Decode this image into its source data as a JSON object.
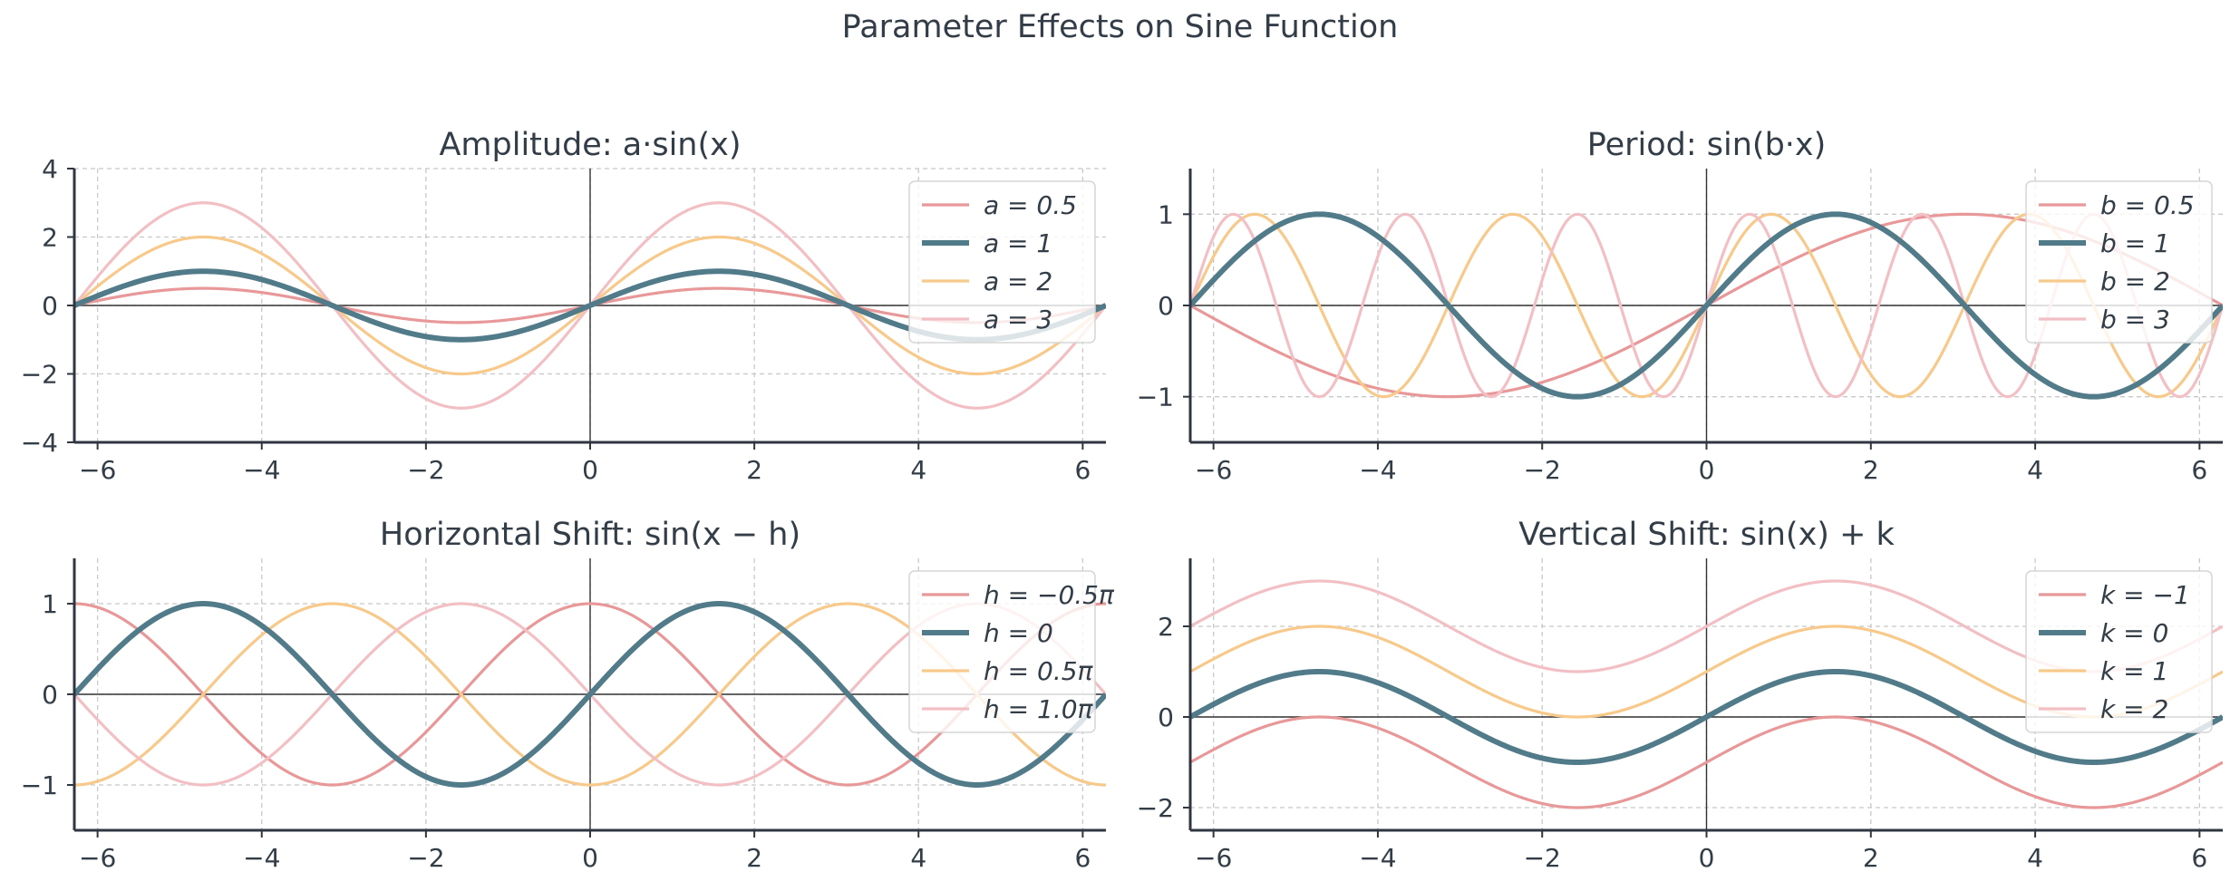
{
  "suptitle": "Parameter Effects on Sine Function",
  "colors": {
    "primary": "#527b8a",
    "c0": "#e89898",
    "c2": "#f7c98a",
    "c3": "#f2c0c4",
    "axis": "#2f3640",
    "text": "#333d47",
    "grid": "#c8c8c8"
  },
  "chart_data": [
    {
      "type": "line",
      "title": "Amplitude: a·sin(x)",
      "function": "a*sin(x)",
      "xlim": [
        -6.283,
        6.283
      ],
      "ylim": [
        -4,
        4
      ],
      "xticks": [
        -6,
        -4,
        -2,
        0,
        2,
        4,
        6
      ],
      "yticks": [
        -4,
        -2,
        0,
        2,
        4
      ],
      "xtick_labels": [
        "−6",
        "−4",
        "−2",
        "0",
        "2",
        "4",
        "6"
      ],
      "ytick_labels": [
        "−4",
        "−2",
        "0",
        "2",
        "4"
      ],
      "grid": true,
      "legend_loc": "top-right",
      "series": [
        {
          "name": "a = 0.5",
          "param": 0.5
        },
        {
          "name": "a = 1",
          "param": 1,
          "emphasis": true
        },
        {
          "name": "a = 2",
          "param": 2
        },
        {
          "name": "a = 3",
          "param": 3
        }
      ]
    },
    {
      "type": "line",
      "title": "Period: sin(b·x)",
      "function": "sin(b*x)",
      "xlim": [
        -6.283,
        6.283
      ],
      "ylim": [
        -1.5,
        1.5
      ],
      "xticks": [
        -6,
        -4,
        -2,
        0,
        2,
        4,
        6
      ],
      "yticks": [
        -1,
        0,
        1
      ],
      "xtick_labels": [
        "−6",
        "−4",
        "−2",
        "0",
        "2",
        "4",
        "6"
      ],
      "ytick_labels": [
        "−1",
        "0",
        "1"
      ],
      "grid": true,
      "legend_loc": "top-right",
      "series": [
        {
          "name": "b = 0.5",
          "param": 0.5
        },
        {
          "name": "b = 1",
          "param": 1,
          "emphasis": true
        },
        {
          "name": "b = 2",
          "param": 2
        },
        {
          "name": "b = 3",
          "param": 3
        }
      ]
    },
    {
      "type": "line",
      "title": "Horizontal Shift: sin(x − h)",
      "function": "sin(x-h)",
      "xlim": [
        -6.283,
        6.283
      ],
      "ylim": [
        -1.5,
        1.5
      ],
      "xticks": [
        -6,
        -4,
        -2,
        0,
        2,
        4,
        6
      ],
      "yticks": [
        -1,
        0,
        1
      ],
      "xtick_labels": [
        "−6",
        "−4",
        "−2",
        "0",
        "2",
        "4",
        "6"
      ],
      "ytick_labels": [
        "−1",
        "0",
        "1"
      ],
      "grid": true,
      "legend_loc": "top-right",
      "series": [
        {
          "name": "h = −0.5π",
          "param": -1.5708
        },
        {
          "name": "h = 0",
          "param": 0,
          "emphasis": true
        },
        {
          "name": "h = 0.5π",
          "param": 1.5708
        },
        {
          "name": "h = 1.0π",
          "param": 3.1416
        }
      ]
    },
    {
      "type": "line",
      "title": "Vertical Shift: sin(x) + k",
      "function": "sin(x)+k",
      "xlim": [
        -6.283,
        6.283
      ],
      "ylim": [
        -2.5,
        3.5
      ],
      "xticks": [
        -6,
        -4,
        -2,
        0,
        2,
        4,
        6
      ],
      "yticks": [
        -2,
        0,
        2
      ],
      "xtick_labels": [
        "−6",
        "−4",
        "−2",
        "0",
        "2",
        "4",
        "6"
      ],
      "ytick_labels": [
        "−2",
        "0",
        "2"
      ],
      "grid": true,
      "legend_loc": "top-right",
      "series": [
        {
          "name": "k = −1",
          "param": -1
        },
        {
          "name": "k = 0",
          "param": 0,
          "emphasis": true
        },
        {
          "name": "k = 1",
          "param": 1
        },
        {
          "name": "k = 2",
          "param": 2
        }
      ]
    }
  ]
}
